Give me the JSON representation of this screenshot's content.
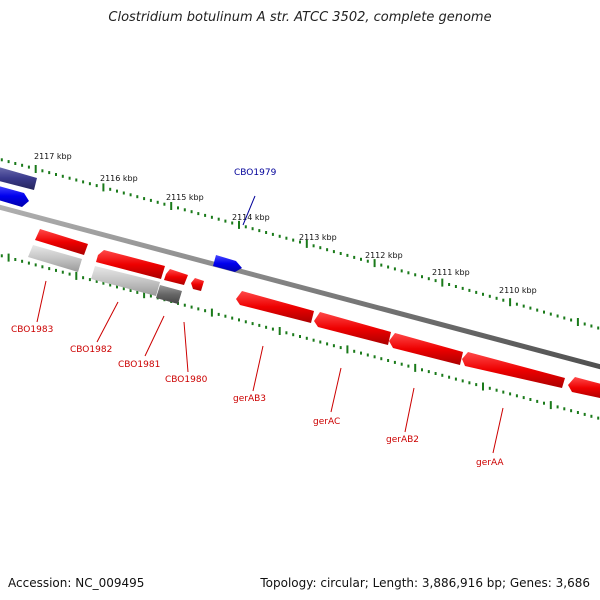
{
  "title": "Clostridium botulinum A str. ATCC 3502, complete genome",
  "footer": {
    "accession": "Accession: NC_009495",
    "topology": "Topology: circular; Length: 3,886,916 bp; Genes: 3,686"
  },
  "colors": {
    "backbone": "#8a8a8a",
    "tick": "#1a7a1a",
    "gene_red": "#ff0000",
    "gene_blue": "#0000ee",
    "gene_navy": "#3b3b8c",
    "gene_gray": "#c8c8c8",
    "gene_darkgray": "#707070",
    "label_red": "#cc0000",
    "label_blue": "#000099"
  },
  "ticks": [
    {
      "label": "2117 kbp"
    },
    {
      "label": "2116 kbp"
    },
    {
      "label": "2115 kbp"
    },
    {
      "label": "2114 kbp"
    },
    {
      "label": "2113 kbp"
    },
    {
      "label": "2112 kbp"
    },
    {
      "label": "2111 kbp"
    },
    {
      "label": "2110 kbp"
    }
  ],
  "genes": [
    {
      "label": "CBO1983"
    },
    {
      "label": "CBO1982"
    },
    {
      "label": "CBO1981"
    },
    {
      "label": "CBO1980"
    },
    {
      "label": "CBO1979"
    },
    {
      "label": "gerAB3"
    },
    {
      "label": "gerAC"
    },
    {
      "label": "gerAB2"
    },
    {
      "label": "gerAA"
    }
  ]
}
